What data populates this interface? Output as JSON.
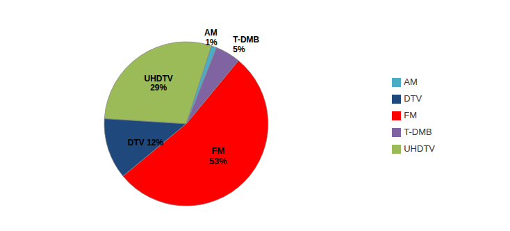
{
  "chart_data": {
    "type": "pie",
    "categories": [
      "UHDTV",
      "DTV",
      "FM",
      "T-DMB",
      "AM"
    ],
    "values": [
      29,
      12,
      53,
      5,
      1
    ],
    "value_labels": [
      "UHDTV\n29%",
      "DTV 12%",
      "FM\n53%",
      "T-DMB\n5%",
      "AM\n1%"
    ],
    "colors": [
      "#9BBB59",
      "#1F497D",
      "#FF0000",
      "#8064A2",
      "#4BACC6"
    ],
    "legend": "right",
    "data_labels": true
  }
}
